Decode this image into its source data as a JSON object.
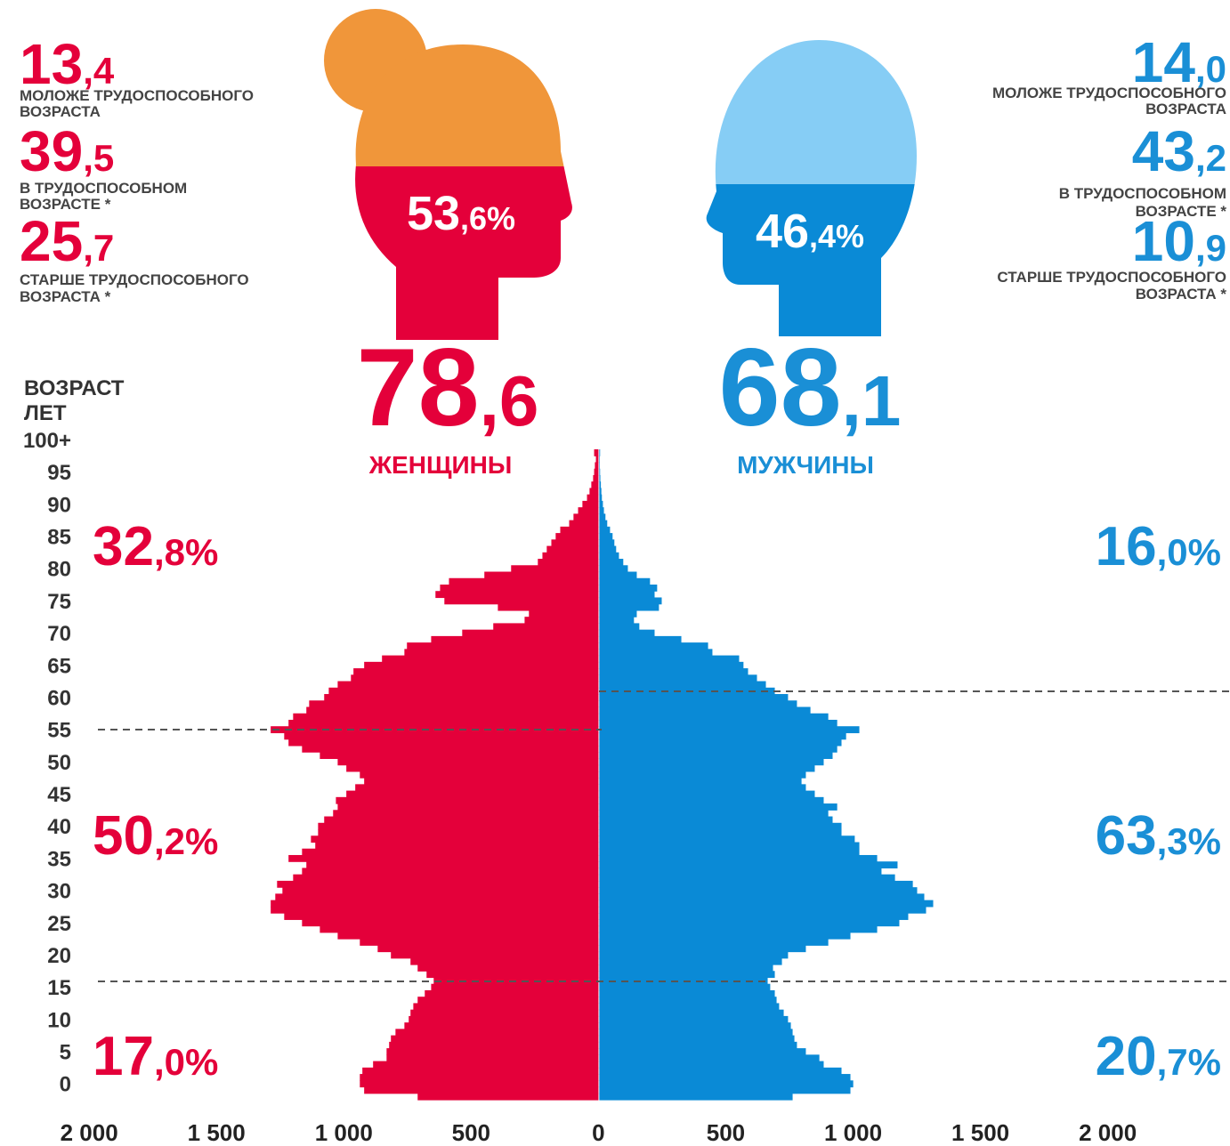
{
  "chart_data": {
    "type": "pyramid",
    "axis_title": [
      "ВОЗРАСТ",
      "ЛЕТ"
    ],
    "categories": [
      "0",
      null,
      null,
      null,
      null,
      "5",
      null,
      null,
      null,
      null,
      "10",
      null,
      null,
      null,
      null,
      "15",
      null,
      null,
      null,
      null,
      "20",
      null,
      null,
      null,
      null,
      "25",
      null,
      null,
      null,
      null,
      "30",
      null,
      null,
      null,
      null,
      "35",
      null,
      null,
      null,
      null,
      "40",
      null,
      null,
      null,
      null,
      "45",
      null,
      null,
      null,
      null,
      "50",
      null,
      null,
      null,
      null,
      "55",
      null,
      null,
      null,
      null,
      "60",
      null,
      null,
      null,
      null,
      "65",
      null,
      null,
      null,
      null,
      "70",
      null,
      null,
      null,
      null,
      "75",
      null,
      null,
      null,
      null,
      "80",
      null,
      null,
      null,
      null,
      "85",
      null,
      null,
      null,
      null,
      "90",
      null,
      null,
      null,
      null,
      "95",
      null,
      null,
      null,
      null,
      "100+"
    ],
    "xlim": [
      -2350,
      2480
    ],
    "xticks": [
      {
        "value": -2000,
        "label": "2 000"
      },
      {
        "value": -1500,
        "label": "1 500"
      },
      {
        "value": -1000,
        "label": "1 000"
      },
      {
        "value": -500,
        "label": "500"
      },
      0,
      500,
      {
        "value": 1000,
        "label": "1 000"
      },
      {
        "value": 1500,
        "label": "1 500"
      },
      {
        "value": 2000,
        "label": "2 000"
      }
    ],
    "series": [
      {
        "name": "ЖЕНЩИНЫ",
        "color": "#e4003a",
        "values": [
          710,
          920,
          937,
          937,
          927,
          885,
          832,
          832,
          822,
          815,
          797,
          762,
          745,
          738,
          727,
          710,
          682,
          657,
          647,
          675,
          710,
          738,
          815,
          867,
          937,
          1024,
          1094,
          1164,
          1234,
          1287,
          1287,
          1269,
          1241,
          1262,
          1199,
          1164,
          1147,
          1217,
          1164,
          1112,
          1129,
          1101,
          1101,
          1077,
          1042,
          1024,
          1031,
          990,
          955,
          920,
          937,
          990,
          1024,
          1094,
          1164,
          1217,
          1234,
          1287,
          1217,
          1199,
          1147,
          1136,
          1077,
          1059,
          1024,
          972,
          962,
          920,
          850,
          762,
          752,
          657,
          535,
          413,
          290,
          273,
          395,
          605,
          640,
          622,
          587,
          448,
          343,
          238,
          220,
          203,
          185,
          168,
          150,
          115,
          98,
          80,
          63,
          45,
          35,
          28,
          21,
          17,
          14,
          10,
          17
        ]
      },
      {
        "name": "МУЖЧИНЫ",
        "color": "#0a8ad6",
        "values": [
          759,
          986,
          997,
          986,
          951,
          881,
          864,
          811,
          776,
          766,
          759,
          752,
          741,
          724,
          706,
          696,
          689,
          671,
          661,
          689,
          682,
          717,
          741,
          811,
          899,
          986,
          1091,
          1178,
          1213,
          1283,
          1311,
          1276,
          1248,
          1231,
          1161,
          1108,
          1171,
          1091,
          1021,
          1021,
          1003,
          951,
          951,
          916,
          899,
          934,
          881,
          846,
          811,
          794,
          811,
          846,
          881,
          916,
          934,
          951,
          969,
          1021,
          934,
          899,
          829,
          776,
          741,
          689,
          654,
          619,
          584,
          566,
          549,
          444,
          427,
          322,
          217,
          157,
          136,
          147,
          234,
          245,
          217,
          227,
          199,
          147,
          112,
          94,
          77,
          66,
          59,
          52,
          42,
          31,
          24,
          18,
          14,
          10,
          8,
          6,
          4,
          3,
          2,
          2,
          3
        ]
      }
    ],
    "panels": [
      {
        "share": {
          "whole": "53",
          "fraction": ",6%"
        },
        "total": {
          "whole": "78",
          "fraction": ",6"
        },
        "groups": [
          {
            "value": {
              "whole": "13",
              "fraction": ",4"
            },
            "label": [
              "МОЛОЖЕ ТРУДОСПОСОБНОГО",
              "ВОЗРАСТА"
            ]
          },
          {
            "value": {
              "whole": "39",
              "fraction": ",5"
            },
            "label": [
              "В ТРУДОСПОСОБНОМ",
              "ВОЗРАСТЕ *"
            ]
          },
          {
            "value": {
              "whole": "25",
              "fraction": ",7"
            },
            "label": [
              "СТАРШЕ ТРУДОСПОСОБНОГО",
              "ВОЗРАСТА *"
            ]
          }
        ],
        "age_shares": [
          {
            "whole": "32",
            "fraction": ",8%"
          },
          {
            "whole": "50",
            "fraction": ",2%"
          },
          {
            "whole": "17",
            "fraction": ",0%"
          }
        ]
      },
      {
        "share": {
          "whole": "46",
          "fraction": ",4%"
        },
        "total": {
          "whole": "68",
          "fraction": ",1"
        },
        "groups": [
          {
            "value": {
              "whole": "14",
              "fraction": ",0"
            },
            "label": [
              "МОЛОЖЕ ТРУДОСПОСОБНОГО",
              "ВОЗРАСТА"
            ]
          },
          {
            "value": {
              "whole": "43",
              "fraction": ",2"
            },
            "label": [
              "В ТРУДОСПОСОБНОМ",
              "ВОЗРАСТЕ *"
            ]
          },
          {
            "value": {
              "whole": "10",
              "fraction": ",9"
            },
            "label": [
              "СТАРШЕ ТРУДОСПОСОБНОГО",
              "ВОЗРАСТА *"
            ]
          }
        ],
        "age_shares": [
          {
            "whole": "16",
            "fraction": ",0%"
          },
          {
            "whole": "63",
            "fraction": ",3%"
          },
          {
            "whole": "20",
            "fraction": ",7%"
          }
        ]
      }
    ]
  }
}
